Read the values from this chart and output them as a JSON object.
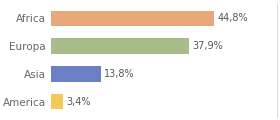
{
  "categories": [
    "America",
    "Asia",
    "Europa",
    "Africa"
  ],
  "values": [
    3.4,
    13.8,
    37.9,
    44.8
  ],
  "labels": [
    "3,4%",
    "13,8%",
    "37,9%",
    "44,8%"
  ],
  "bar_colors": [
    "#f2ca5a",
    "#6b7fc4",
    "#a8bc8a",
    "#e8a87c"
  ],
  "background_color": "#ffffff",
  "xlim": [
    0,
    62
  ],
  "label_fontsize": 7,
  "tick_fontsize": 7.5,
  "bar_height": 0.55
}
